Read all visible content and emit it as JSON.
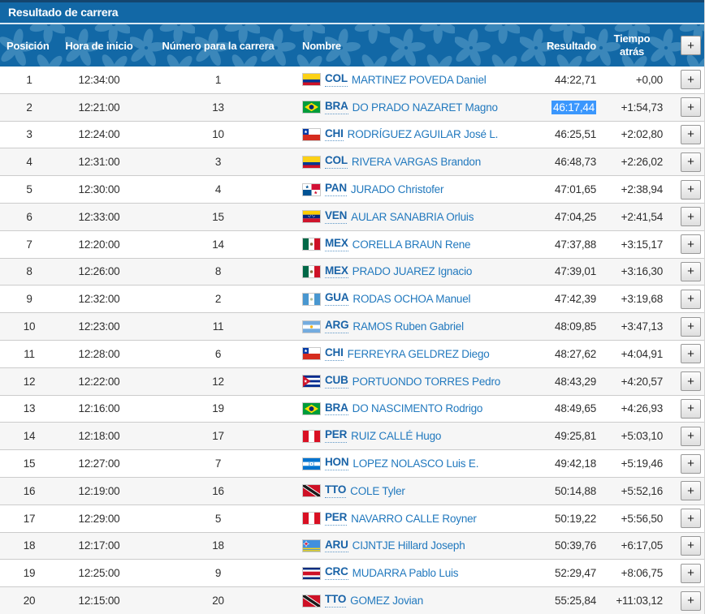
{
  "title": "Resultado de carrera",
  "columns": {
    "position": "Posición",
    "start_time": "Hora de inicio",
    "bib": "Número para la carrera",
    "name": "Nombre",
    "result": "Resultado",
    "gap": "Tiempo atrás"
  },
  "expand_button_label": "+",
  "colors": {
    "header_bg": "#1268a6",
    "header_pattern_flower": "#3b87ba",
    "top_border": "#14456e",
    "title_separator": "#d9e8f3",
    "row_alt_bg": "#f6f6f6",
    "row_border": "#cccccc",
    "athlete_name": "#2279be",
    "country_code": "#1a63a7",
    "data_text": "#2e2e2e",
    "selection_bg": "#3b97fd",
    "selection_text": "#ffffff"
  },
  "rows": [
    {
      "position": "1",
      "start_time": "12:34:00",
      "bib": "1",
      "country": "COL",
      "name": "MARTINEZ POVEDA Daniel",
      "result": "44:22,71",
      "gap": "+0,00",
      "result_highlighted": false
    },
    {
      "position": "2",
      "start_time": "12:21:00",
      "bib": "13",
      "country": "BRA",
      "name": "DO PRADO NAZARET Magno",
      "result": "46:17,44",
      "gap": "+1:54,73",
      "result_highlighted": true
    },
    {
      "position": "3",
      "start_time": "12:24:00",
      "bib": "10",
      "country": "CHI",
      "name": "RODRÍGUEZ AGUILAR José L.",
      "result": "46:25,51",
      "gap": "+2:02,80",
      "result_highlighted": false
    },
    {
      "position": "4",
      "start_time": "12:31:00",
      "bib": "3",
      "country": "COL",
      "name": "RIVERA VARGAS Brandon",
      "result": "46:48,73",
      "gap": "+2:26,02",
      "result_highlighted": false
    },
    {
      "position": "5",
      "start_time": "12:30:00",
      "bib": "4",
      "country": "PAN",
      "name": "JURADO Christofer",
      "result": "47:01,65",
      "gap": "+2:38,94",
      "result_highlighted": false
    },
    {
      "position": "6",
      "start_time": "12:33:00",
      "bib": "15",
      "country": "VEN",
      "name": "AULAR SANABRIA Orluis",
      "result": "47:04,25",
      "gap": "+2:41,54",
      "result_highlighted": false
    },
    {
      "position": "7",
      "start_time": "12:20:00",
      "bib": "14",
      "country": "MEX",
      "name": "CORELLA BRAUN Rene",
      "result": "47:37,88",
      "gap": "+3:15,17",
      "result_highlighted": false
    },
    {
      "position": "8",
      "start_time": "12:26:00",
      "bib": "8",
      "country": "MEX",
      "name": "PRADO JUAREZ Ignacio",
      "result": "47:39,01",
      "gap": "+3:16,30",
      "result_highlighted": false
    },
    {
      "position": "9",
      "start_time": "12:32:00",
      "bib": "2",
      "country": "GUA",
      "name": "RODAS OCHOA Manuel",
      "result": "47:42,39",
      "gap": "+3:19,68",
      "result_highlighted": false
    },
    {
      "position": "10",
      "start_time": "12:23:00",
      "bib": "11",
      "country": "ARG",
      "name": "RAMOS Ruben Gabriel",
      "result": "48:09,85",
      "gap": "+3:47,13",
      "result_highlighted": false
    },
    {
      "position": "11",
      "start_time": "12:28:00",
      "bib": "6",
      "country": "CHI",
      "name": "FERREYRA GELDREZ Diego",
      "result": "48:27,62",
      "gap": "+4:04,91",
      "result_highlighted": false
    },
    {
      "position": "12",
      "start_time": "12:22:00",
      "bib": "12",
      "country": "CUB",
      "name": "PORTUONDO TORRES Pedro",
      "result": "48:43,29",
      "gap": "+4:20,57",
      "result_highlighted": false
    },
    {
      "position": "13",
      "start_time": "12:16:00",
      "bib": "19",
      "country": "BRA",
      "name": "DO NASCIMENTO Rodrigo",
      "result": "48:49,65",
      "gap": "+4:26,93",
      "result_highlighted": false
    },
    {
      "position": "14",
      "start_time": "12:18:00",
      "bib": "17",
      "country": "PER",
      "name": "RUIZ CALLÉ Hugo",
      "result": "49:25,81",
      "gap": "+5:03,10",
      "result_highlighted": false
    },
    {
      "position": "15",
      "start_time": "12:27:00",
      "bib": "7",
      "country": "HON",
      "name": "LOPEZ NOLASCO Luis E.",
      "result": "49:42,18",
      "gap": "+5:19,46",
      "result_highlighted": false
    },
    {
      "position": "16",
      "start_time": "12:19:00",
      "bib": "16",
      "country": "TTO",
      "name": "COLE Tyler",
      "result": "50:14,88",
      "gap": "+5:52,16",
      "result_highlighted": false
    },
    {
      "position": "17",
      "start_time": "12:29:00",
      "bib": "5",
      "country": "PER",
      "name": "NAVARRO CALLE Royner",
      "result": "50:19,22",
      "gap": "+5:56,50",
      "result_highlighted": false
    },
    {
      "position": "18",
      "start_time": "12:17:00",
      "bib": "18",
      "country": "ARU",
      "name": "CIJNTJE Hillard Joseph",
      "result": "50:39,76",
      "gap": "+6:17,05",
      "result_highlighted": false
    },
    {
      "position": "19",
      "start_time": "12:25:00",
      "bib": "9",
      "country": "CRC",
      "name": "MUDARRA Pablo Luis",
      "result": "52:29,47",
      "gap": "+8:06,75",
      "result_highlighted": false
    },
    {
      "position": "20",
      "start_time": "12:15:00",
      "bib": "20",
      "country": "TTO",
      "name": "GOMEZ Jovian",
      "result": "55:25,84",
      "gap": "+11:03,12",
      "result_highlighted": false
    }
  ]
}
